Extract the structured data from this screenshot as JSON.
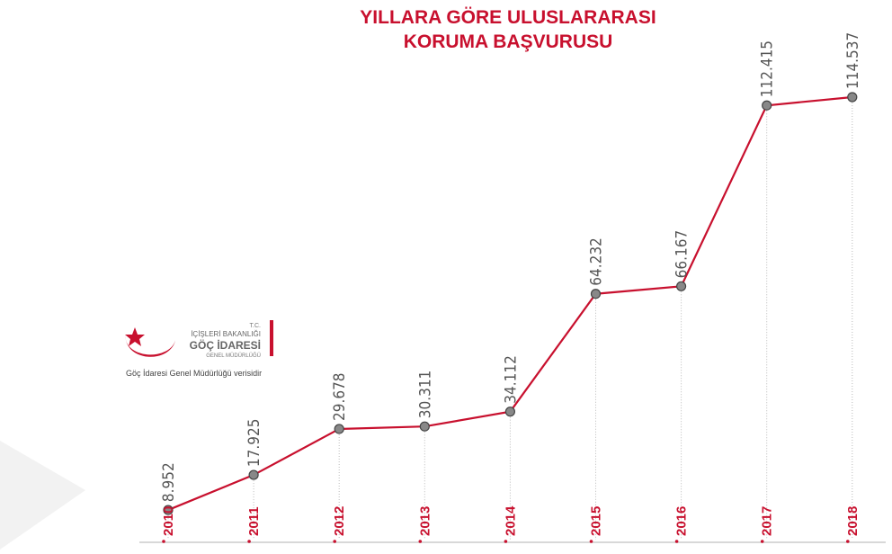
{
  "chart_data": {
    "type": "line",
    "title": [
      "YILLARA GÖRE ULUSLARARASI",
      "KORUMA BAŞVURUSU"
    ],
    "categories": [
      "2010",
      "2011",
      "2012",
      "2013",
      "2014",
      "2015",
      "2016",
      "2017",
      "2018"
    ],
    "values": [
      8952,
      17925,
      29678,
      30311,
      34112,
      64232,
      66167,
      112415,
      114537
    ],
    "value_labels": [
      "8.952",
      "17.925",
      "29.678",
      "30.311",
      "34.112",
      "64.232",
      "66.167",
      "112.415",
      "114.537"
    ],
    "color": "#c8102e",
    "logo": {
      "line1": "T.C.",
      "line2": "İÇİŞLERİ BAKANLIĞI",
      "line3": "GÖÇ İDARESİ",
      "line4": "GENEL MÜDÜRLÜĞÜ"
    },
    "source": "Göç İdaresi Genel Müdürlüğü verisidir"
  }
}
